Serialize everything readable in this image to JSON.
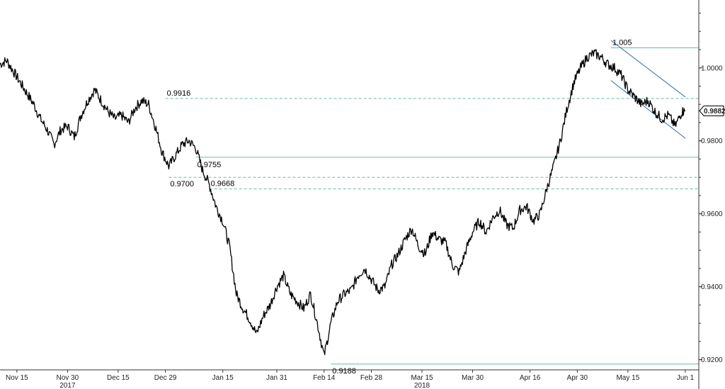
{
  "chart_data": {
    "type": "line",
    "title": "",
    "xlabel": "",
    "ylabel": "",
    "ylim": [
      0.9172,
      1.0186
    ],
    "y_ticks": [
      "0.9200",
      "0.9400",
      "0.9600",
      "0.9800",
      "1.0000"
    ],
    "y_tick_values": [
      0.92,
      0.94,
      0.96,
      0.98,
      1.0
    ],
    "x_ticks": [
      {
        "label": "Nov 15",
        "day": 0
      },
      {
        "label": "Nov 30",
        "day": 15
      },
      {
        "label": "Dec 15",
        "day": 30
      },
      {
        "label": "Dec 29",
        "day": 44
      },
      {
        "label": "Jan 15",
        "day": 61
      },
      {
        "label": "Jan 31",
        "day": 77
      },
      {
        "label": "Feb 14",
        "day": 91
      },
      {
        "label": "Feb 28",
        "day": 105
      },
      {
        "label": "Mar 15",
        "day": 120
      },
      {
        "label": "Mar 30",
        "day": 135
      },
      {
        "label": "Apr 16",
        "day": 152
      },
      {
        "label": "Apr 30",
        "day": 166
      },
      {
        "label": "May 15",
        "day": 181
      },
      {
        "label": "Jun 1",
        "day": 198
      }
    ],
    "x_range": [
      -5,
      202
    ],
    "years": [
      {
        "label": "2017",
        "day": 15
      },
      {
        "label": "2018",
        "day": 120
      }
    ],
    "last_price": {
      "label": "0.9882",
      "value": 0.9882
    },
    "series": [
      {
        "x": [
          -5,
          -3,
          -1,
          1,
          3,
          5,
          7,
          9,
          11,
          13,
          15,
          17,
          19,
          21,
          23,
          25,
          27,
          29,
          31,
          33,
          35,
          37,
          39,
          41,
          43,
          45,
          47,
          49,
          51,
          53,
          55,
          57,
          59,
          61,
          63,
          65,
          67,
          69,
          71,
          73,
          75,
          77,
          79,
          81,
          83,
          85,
          87,
          89,
          91,
          93,
          95,
          97,
          99,
          101,
          103,
          105,
          107,
          109,
          111,
          113,
          115,
          117,
          119,
          121,
          123,
          125,
          127,
          129,
          131,
          133,
          135,
          137,
          139,
          141,
          143,
          145,
          147,
          149,
          151,
          153,
          155,
          157,
          159,
          161,
          163,
          165,
          167,
          169,
          171,
          173,
          175,
          177,
          179,
          181,
          183,
          185,
          187,
          189,
          191,
          193,
          195,
          197,
          198
        ],
        "y": [
          1.001,
          1.002,
          0.999,
          0.996,
          0.993,
          0.99,
          0.986,
          0.983,
          0.979,
          0.983,
          0.984,
          0.981,
          0.987,
          0.991,
          0.994,
          0.991,
          0.988,
          0.986,
          0.987,
          0.985,
          0.989,
          0.991,
          0.99,
          0.984,
          0.977,
          0.973,
          0.976,
          0.979,
          0.98,
          0.978,
          0.972,
          0.968,
          0.962,
          0.958,
          0.951,
          0.938,
          0.934,
          0.931,
          0.927,
          0.932,
          0.935,
          0.94,
          0.943,
          0.938,
          0.936,
          0.934,
          0.938,
          0.93,
          0.921,
          0.93,
          0.936,
          0.938,
          0.939,
          0.943,
          0.945,
          0.942,
          0.939,
          0.94,
          0.946,
          0.949,
          0.953,
          0.956,
          0.951,
          0.949,
          0.955,
          0.953,
          0.952,
          0.946,
          0.944,
          0.95,
          0.955,
          0.958,
          0.955,
          0.959,
          0.961,
          0.957,
          0.956,
          0.961,
          0.962,
          0.958,
          0.96,
          0.967,
          0.973,
          0.98,
          0.989,
          0.996,
          1.0,
          1.003,
          1.004,
          1.003,
          1.001,
          1.0,
          0.998,
          0.994,
          0.992,
          0.99,
          0.991,
          0.988,
          0.986,
          0.987,
          0.984,
          0.988,
          0.9882
        ]
      }
    ],
    "annotations": [
      {
        "text": "1.005",
        "day": 176,
        "value": 1.0055
      },
      {
        "text": "0.9916",
        "day": 44,
        "value": 0.9916
      },
      {
        "text": "0.9755",
        "day": 53,
        "value": 0.9755
      },
      {
        "text": "0.9700",
        "day": 45,
        "value": 0.97
      },
      {
        "text": "0.9668",
        "day": 57,
        "value": 0.9668
      },
      {
        "text": "0.9188",
        "day": 93,
        "value": 0.9188
      }
    ],
    "horizontal_lines": [
      {
        "value": 1.0055,
        "from_day": 176,
        "style": "solid"
      },
      {
        "value": 0.9916,
        "from_day": 44,
        "style": "dashed"
      },
      {
        "value": 0.9755,
        "from_day": 53,
        "style": "solid"
      },
      {
        "value": 0.97,
        "from_day": 45,
        "style": "dashed"
      },
      {
        "value": 0.9668,
        "from_day": 57,
        "style": "dashed"
      },
      {
        "value": 0.9188,
        "from_day": 93,
        "style": "solid"
      }
    ],
    "channel_lines": [
      {
        "from": [
          176,
          1.0075
        ],
        "to": [
          198,
          0.992
        ]
      },
      {
        "from": [
          176,
          0.9965
        ],
        "to": [
          198,
          0.9807
        ]
      }
    ],
    "grid": false,
    "colors": {
      "price": "#000000",
      "level_line": "#5fbfad",
      "channel": "#2f6b9a",
      "axis": "#333333"
    }
  }
}
